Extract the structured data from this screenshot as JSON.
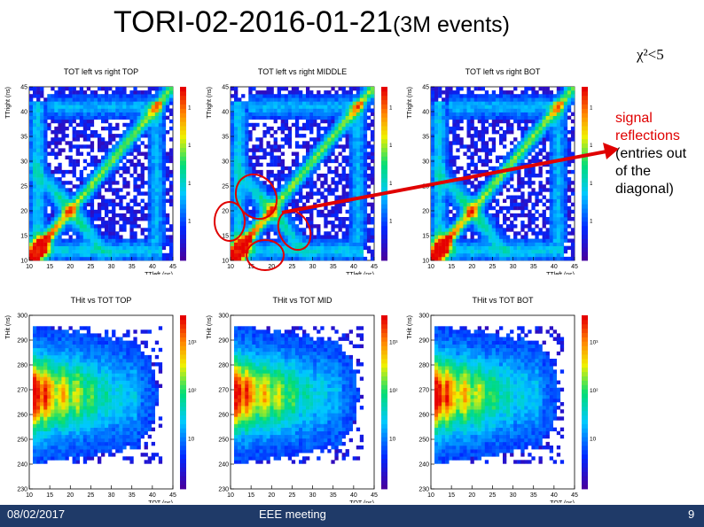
{
  "slide": {
    "title_main": "TORI-02-2016-01-21",
    "title_sub": "(3M events)",
    "chi_label": "χ²<5",
    "note_lines_red": [
      "signal",
      "reflections"
    ],
    "note_lines_black": [
      "(entries out",
      "of the",
      "diagonal)"
    ],
    "colors": {
      "footer": "#1f3a68",
      "annotation": "#e00000"
    }
  },
  "footer": {
    "date": "08/02/2017",
    "meeting": "EEE meeting",
    "page": "9"
  },
  "chart_data": [
    {
      "type": "heatmap",
      "title": "TOT left vs right TOP",
      "xlabel": "TTleft (ns)",
      "ylabel": "TTright (ns)",
      "xlim": [
        10,
        45
      ],
      "ylim": [
        10,
        45
      ],
      "x_ticks": [
        10,
        15,
        20,
        25,
        30,
        35,
        40,
        45
      ],
      "y_ticks": [
        10,
        15,
        20,
        25,
        30,
        35,
        40,
        45
      ],
      "z_ticks": [
        "10",
        "10²",
        "10³",
        "10⁴"
      ],
      "pattern": "diag"
    },
    {
      "type": "heatmap",
      "title": "TOT left vs right MIDDLE",
      "xlabel": "TTleft (ns)",
      "ylabel": "TTright (ns)",
      "xlim": [
        10,
        45
      ],
      "ylim": [
        10,
        45
      ],
      "x_ticks": [
        10,
        15,
        20,
        25,
        30,
        35,
        40,
        45
      ],
      "y_ticks": [
        10,
        15,
        20,
        25,
        30,
        35,
        40,
        45
      ],
      "z_ticks": [
        "10",
        "10²",
        "10³",
        "10⁴"
      ],
      "pattern": "diag"
    },
    {
      "type": "heatmap",
      "title": "TOT left vs right BOT",
      "xlabel": "TTleft (ns)",
      "ylabel": "TTright (ns)",
      "xlim": [
        10,
        45
      ],
      "ylim": [
        10,
        45
      ],
      "x_ticks": [
        10,
        15,
        20,
        25,
        30,
        35,
        40,
        45
      ],
      "y_ticks": [
        10,
        15,
        20,
        25,
        30,
        35,
        40,
        45
      ],
      "z_ticks": [
        "10",
        "10²",
        "10³",
        "10⁴"
      ],
      "pattern": "diag"
    },
    {
      "type": "heatmap",
      "title": "THit vs TOT TOP",
      "xlabel": "TOT (ns)",
      "ylabel": "THit (ns)",
      "xlim": [
        10,
        45
      ],
      "ylim": [
        230,
        300
      ],
      "x_ticks": [
        10,
        15,
        20,
        25,
        30,
        35,
        40,
        45
      ],
      "y_ticks": [
        230,
        240,
        250,
        260,
        270,
        280,
        290,
        300
      ],
      "z_ticks": [
        "10",
        "10²",
        "10³"
      ],
      "pattern": "band"
    },
    {
      "type": "heatmap",
      "title": "THit vs TOT MID",
      "xlabel": "TOT (ns)",
      "ylabel": "THit (ns)",
      "xlim": [
        10,
        45
      ],
      "ylim": [
        230,
        300
      ],
      "x_ticks": [
        10,
        15,
        20,
        25,
        30,
        35,
        40,
        45
      ],
      "y_ticks": [
        230,
        240,
        250,
        260,
        270,
        280,
        290,
        300
      ],
      "z_ticks": [
        "10",
        "10²",
        "10³"
      ],
      "pattern": "band"
    },
    {
      "type": "heatmap",
      "title": "THit vs TOT BOT",
      "xlabel": "TOT (ns)",
      "ylabel": "THit (ns)",
      "xlim": [
        10,
        45
      ],
      "ylim": [
        230,
        300
      ],
      "x_ticks": [
        10,
        15,
        20,
        25,
        30,
        35,
        40,
        45
      ],
      "y_ticks": [
        230,
        240,
        250,
        260,
        270,
        280,
        290,
        300
      ],
      "z_ticks": [
        "10",
        "10²",
        "10³"
      ],
      "pattern": "band"
    }
  ]
}
